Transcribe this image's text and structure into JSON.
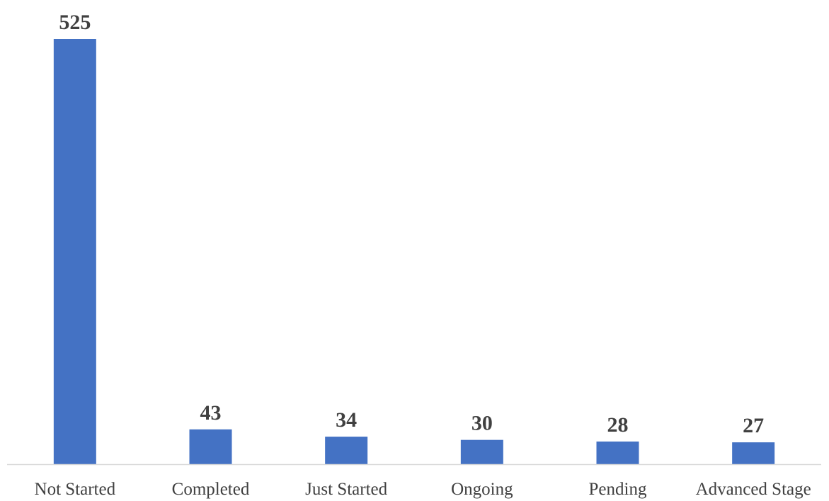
{
  "chart_data": {
    "type": "bar",
    "title": "",
    "xlabel": "",
    "ylabel": "",
    "categories": [
      "Not Started",
      "Completed",
      "Just Started",
      "Ongoing",
      "Pending",
      "Advanced Stage"
    ],
    "values": [
      525,
      43,
      34,
      30,
      28,
      27
    ],
    "data_labels": [
      "525",
      "43",
      "34",
      "30",
      "28",
      "27"
    ],
    "ylim": [
      0,
      525
    ],
    "grid": false,
    "legend": "none",
    "colors": {
      "bar": "#4472C4",
      "axis": "#D9D9D9",
      "text": "#404040"
    }
  }
}
